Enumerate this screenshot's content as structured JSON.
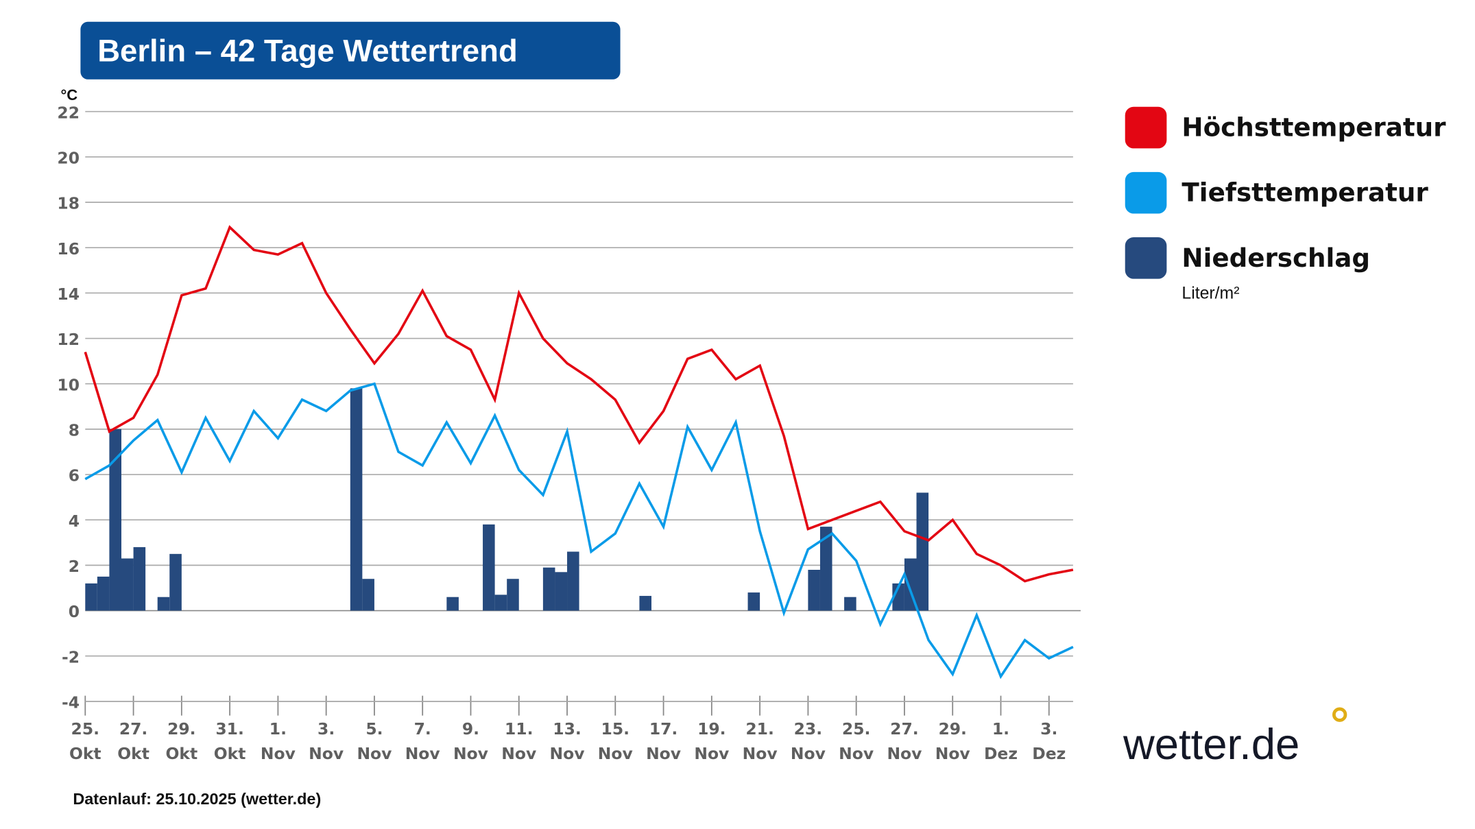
{
  "header": {
    "title": "Berlin – 42 Tage Wettertrend"
  },
  "footer": {
    "source": "Datenlauf: 25.10.2025 (wetter.de)"
  },
  "logo": {
    "text": "wetter.de",
    "dot_color": "#e0ad16"
  },
  "legend": {
    "items": [
      {
        "label": "Höchsttemperatur",
        "color": "#e30613"
      },
      {
        "label": "Tiefsttemperatur",
        "color": "#0a9be8"
      },
      {
        "label": "Niederschlag",
        "color": "#264a7e",
        "unit": "Liter/m²"
      }
    ]
  },
  "chart_data": {
    "type": "line",
    "title": "Berlin – 42 Tage Wettertrend",
    "ylabel": "°C",
    "ylim": [
      -4,
      22
    ],
    "yticks": [
      "22",
      "20",
      "18",
      "16",
      "14",
      "12",
      "10",
      "8",
      "6",
      "4",
      "2",
      "0",
      "-2",
      "-4"
    ],
    "grid": true,
    "legend_position": "right",
    "xtick_labels": [
      {
        "day": "25.",
        "month": "Okt"
      },
      {
        "day": "27.",
        "month": "Okt"
      },
      {
        "day": "29.",
        "month": "Okt"
      },
      {
        "day": "31.",
        "month": "Okt"
      },
      {
        "day": "1.",
        "month": "Nov"
      },
      {
        "day": "3.",
        "month": "Nov"
      },
      {
        "day": "5.",
        "month": "Nov"
      },
      {
        "day": "7.",
        "month": "Nov"
      },
      {
        "day": "9.",
        "month": "Nov"
      },
      {
        "day": "11.",
        "month": "Nov"
      },
      {
        "day": "13.",
        "month": "Nov"
      },
      {
        "day": "15.",
        "month": "Nov"
      },
      {
        "day": "17.",
        "month": "Nov"
      },
      {
        "day": "19.",
        "month": "Nov"
      },
      {
        "day": "21.",
        "month": "Nov"
      },
      {
        "day": "23.",
        "month": "Nov"
      },
      {
        "day": "25.",
        "month": "Nov"
      },
      {
        "day": "27.",
        "month": "Nov"
      },
      {
        "day": "29.",
        "month": "Nov"
      },
      {
        "day": "1.",
        "month": "Dez"
      },
      {
        "day": "3.",
        "month": "Dez"
      }
    ],
    "series": [
      {
        "name": "Höchsttemperatur",
        "color": "#e30613",
        "values": [
          11.4,
          7.9,
          8.5,
          10.4,
          13.9,
          14.2,
          16.9,
          15.9,
          15.7,
          16.2,
          14.0,
          12.4,
          10.9,
          12.2,
          14.1,
          12.1,
          11.5,
          9.3,
          14.0,
          12.0,
          10.9,
          10.2,
          9.3,
          7.4,
          8.8,
          11.1,
          11.5,
          10.2,
          10.8,
          7.7,
          3.6,
          4.0,
          4.4,
          4.8,
          3.5,
          3.1,
          4.0,
          2.5,
          2.0,
          1.3,
          1.6,
          1.8
        ]
      },
      {
        "name": "Tiefsttemperatur",
        "color": "#0a9be8",
        "values": [
          5.8,
          6.4,
          7.5,
          8.4,
          6.1,
          8.5,
          6.6,
          8.8,
          7.6,
          9.3,
          8.8,
          9.7,
          10.0,
          7.0,
          6.4,
          8.3,
          6.5,
          8.6,
          6.2,
          5.1,
          7.9,
          2.6,
          3.4,
          5.6,
          3.7,
          8.1,
          6.2,
          8.3,
          3.5,
          -0.1,
          2.7,
          3.4,
          2.2,
          -0.6,
          1.6,
          -1.3,
          -2.8,
          -0.2,
          -2.9,
          -1.3,
          -2.1,
          -1.6
        ]
      }
    ],
    "precipitation": {
      "name": "Niederschlag",
      "unit": "Liter/m²",
      "color": "#264a7e",
      "resolution": "half-day",
      "bars": [
        {
          "half_day": 0,
          "value": 1.2
        },
        {
          "half_day": 1,
          "value": 1.5
        },
        {
          "half_day": 2,
          "value": 8.0
        },
        {
          "half_day": 3,
          "value": 2.3
        },
        {
          "half_day": 4,
          "value": 2.8
        },
        {
          "half_day": 6,
          "value": 0.6
        },
        {
          "half_day": 7,
          "value": 2.5
        },
        {
          "half_day": 22,
          "value": 9.8
        },
        {
          "half_day": 23,
          "value": 1.4
        },
        {
          "half_day": 30,
          "value": 0.6
        },
        {
          "half_day": 33,
          "value": 3.8
        },
        {
          "half_day": 34,
          "value": 0.7
        },
        {
          "half_day": 35,
          "value": 1.4
        },
        {
          "half_day": 38,
          "value": 1.9
        },
        {
          "half_day": 39,
          "value": 1.7
        },
        {
          "half_day": 40,
          "value": 2.6
        },
        {
          "half_day": 46,
          "value": 0.65
        },
        {
          "half_day": 55,
          "value": 0.8
        },
        {
          "half_day": 60,
          "value": 1.8
        },
        {
          "half_day": 61,
          "value": 3.7
        },
        {
          "half_day": 63,
          "value": 0.6
        },
        {
          "half_day": 67,
          "value": 1.2
        },
        {
          "half_day": 68,
          "value": 2.3
        },
        {
          "half_day": 69,
          "value": 5.2
        }
      ]
    }
  }
}
